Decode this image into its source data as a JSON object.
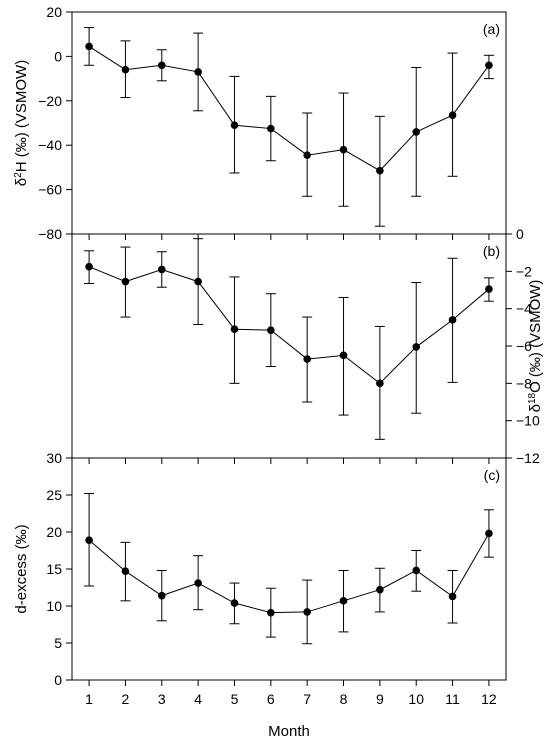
{
  "chart_data": [
    {
      "type": "line",
      "panel_label": "(a)",
      "ylabel_prefix": "δ",
      "ylabel_sup": "2",
      "ylabel_rest": "H (‰) (VSMOW)",
      "y_axis_side": "left",
      "ylim": [
        -80,
        20
      ],
      "yticks": [
        20,
        0,
        -20,
        -40,
        -60,
        -80
      ],
      "ytick_labels": [
        "20",
        "0",
        "−20",
        "−40",
        "−60",
        "−80"
      ],
      "x": [
        1,
        2,
        3,
        4,
        5,
        6,
        7,
        8,
        9,
        10,
        11,
        12
      ],
      "series": [
        {
          "values": [
            4.5,
            -6,
            -4,
            -7,
            -31,
            -32.5,
            -44.5,
            -42,
            -51.5,
            -34,
            -26.5,
            -4
          ],
          "err_low": [
            -4,
            -18.5,
            -11,
            -24.5,
            -52.5,
            -47,
            -63,
            -67.5,
            -76.5,
            -63,
            -54,
            -10
          ],
          "err_high": [
            13,
            7,
            3,
            10.5,
            -9,
            -18,
            -25.5,
            -16.5,
            -27,
            -5,
            1.5,
            0.5
          ]
        }
      ]
    },
    {
      "type": "line",
      "panel_label": "(b)",
      "ylabel_prefix": "δ",
      "ylabel_sup": "18",
      "ylabel_rest": "O (‰) (VSMOW)",
      "y_axis_side": "right",
      "ylim": [
        -12,
        0
      ],
      "yticks": [
        0,
        -2,
        -4,
        -6,
        -8,
        -10,
        -12
      ],
      "ytick_labels": [
        "0",
        "−2",
        "−4",
        "−6",
        "−8",
        "−10",
        "−12"
      ],
      "x": [
        1,
        2,
        3,
        4,
        5,
        6,
        7,
        8,
        9,
        10,
        11,
        12
      ],
      "series": [
        {
          "values": [
            -1.75,
            -2.55,
            -1.9,
            -2.55,
            -5.1,
            -5.15,
            -6.7,
            -6.5,
            -8.0,
            -6.05,
            -4.6,
            -2.95
          ],
          "err_low": [
            -2.65,
            -4.45,
            -2.85,
            -4.85,
            -8.0,
            -7.1,
            -9.0,
            -9.7,
            -11.0,
            -9.6,
            -7.95,
            -3.6
          ],
          "err_high": [
            -0.9,
            -0.7,
            -0.95,
            -0.25,
            -2.3,
            -3.2,
            -4.45,
            -3.4,
            -4.95,
            -2.6,
            -1.3,
            -2.35
          ]
        }
      ]
    },
    {
      "type": "line",
      "panel_label": "(c)",
      "ylabel_prefix": "",
      "ylabel_sup": "",
      "ylabel_rest": "d-excess (‰)",
      "y_axis_side": "left",
      "ylim": [
        0,
        30
      ],
      "yticks": [
        30,
        25,
        20,
        15,
        10,
        5,
        0
      ],
      "ytick_labels": [
        "30",
        "25",
        "20",
        "15",
        "10",
        "5",
        "0"
      ],
      "xlabel": "Month",
      "x": [
        1,
        2,
        3,
        4,
        5,
        6,
        7,
        8,
        9,
        10,
        11,
        12
      ],
      "xtick_labels": [
        "1",
        "2",
        "3",
        "4",
        "5",
        "6",
        "7",
        "8",
        "9",
        "10",
        "11",
        "12"
      ],
      "series": [
        {
          "values": [
            18.9,
            14.7,
            11.4,
            13.1,
            10.4,
            9.1,
            9.2,
            10.7,
            12.2,
            14.8,
            11.3,
            19.8
          ],
          "err_low": [
            12.7,
            10.7,
            8.0,
            9.5,
            7.6,
            5.8,
            4.9,
            6.5,
            9.2,
            12.0,
            7.7,
            16.6
          ],
          "err_high": [
            25.2,
            18.6,
            14.8,
            16.8,
            13.1,
            12.4,
            13.5,
            14.8,
            15.1,
            17.5,
            14.8,
            23.0
          ]
        }
      ]
    }
  ]
}
